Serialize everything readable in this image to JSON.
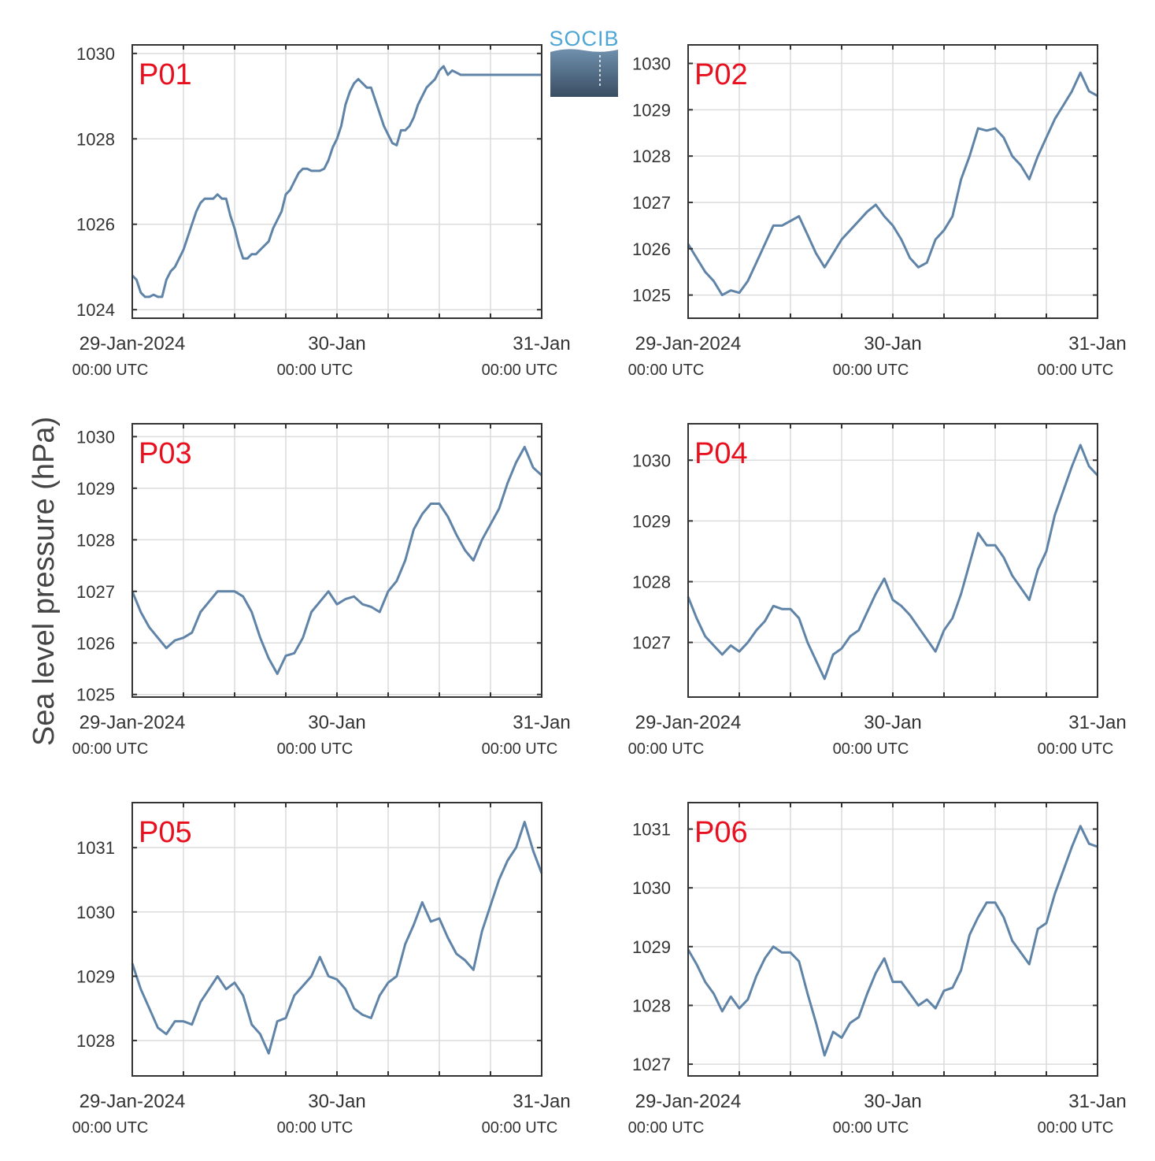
{
  "ylabel": "Sea level pressure (hPa)",
  "logo": {
    "text": "SOCIB"
  },
  "colors": {
    "line": "#5f84a8",
    "panel_label": "#e8101e",
    "grid": "#dcdcdc",
    "axes": "#333333"
  },
  "chart_data": [
    {
      "type": "line",
      "panel_label": "P01",
      "xlim": [
        0,
        48
      ],
      "ylim": [
        1023.8,
        1030.2
      ],
      "yticks": [
        1024,
        1026,
        1028,
        1030
      ],
      "ytick_labels": [
        "1024",
        "1026",
        "1028",
        "1030"
      ],
      "x_tick_labels": [
        {
          "date": "29-Jan-2024",
          "time": "00:00 UTC"
        },
        {
          "date": "30-Jan",
          "time": "00:00 UTC"
        },
        {
          "date": "31-Jan",
          "time": "00:00 UTC"
        }
      ],
      "grid": true,
      "x": [
        0,
        0.5,
        1,
        1.5,
        2,
        2.5,
        3,
        3.5,
        4,
        4.5,
        5,
        5.5,
        6,
        6.5,
        7,
        7.5,
        8,
        8.5,
        9,
        9.5,
        10,
        10.5,
        11,
        11.5,
        12,
        12.5,
        13,
        13.5,
        14,
        14.5,
        15,
        15.5,
        16,
        16.5,
        17,
        17.5,
        18,
        18.5,
        19,
        19.5,
        20,
        20.5,
        21,
        21.5,
        22,
        22.5,
        23,
        23.5,
        24,
        24.5,
        25,
        25.5,
        26,
        26.5,
        27,
        27.5,
        28,
        28.5,
        29,
        29.5,
        30,
        30.5,
        31,
        31.5,
        32,
        32.5,
        33,
        33.5,
        34,
        34.5,
        35,
        35.5,
        36,
        36.5,
        37,
        37.5,
        38,
        38.5,
        39,
        39.5,
        40,
        40.5,
        41,
        41.5,
        42,
        42.5,
        43,
        43.5,
        44,
        44.5,
        45,
        45.5,
        46,
        46.5,
        47,
        47.5,
        48
      ],
      "y": [
        1024.8,
        1024.7,
        1024.4,
        1024.3,
        1024.3,
        1024.35,
        1024.3,
        1024.3,
        1024.7,
        1024.9,
        1025.0,
        1025.2,
        1025.4,
        1025.7,
        1026.0,
        1026.3,
        1026.5,
        1026.6,
        1026.6,
        1026.6,
        1026.7,
        1026.6,
        1026.6,
        1026.2,
        1025.9,
        1025.5,
        1025.2,
        1025.2,
        1025.3,
        1025.3,
        1025.4,
        1025.5,
        1025.6,
        1025.9,
        1026.1,
        1026.3,
        1026.7,
        1026.8,
        1027.0,
        1027.2,
        1027.3,
        1027.3,
        1027.25,
        1027.25,
        1027.25,
        1027.3,
        1027.5,
        1027.8,
        1028.0,
        1028.3,
        1028.8,
        1029.1,
        1029.3,
        1029.4,
        1029.3,
        1029.2,
        1029.2,
        1028.9,
        1028.6,
        1028.3,
        1028.1,
        1027.9,
        1027.85,
        1028.2,
        1028.2,
        1028.3,
        1028.5,
        1028.8,
        1029.0,
        1029.2,
        1029.3,
        1029.4,
        1029.6,
        1029.7,
        1029.5,
        1029.6,
        1029.55,
        1029.5,
        1029.5,
        1029.5,
        1029.5,
        1029.5,
        1029.5,
        1029.5,
        1029.5,
        1029.5,
        1029.5,
        1029.5,
        1029.5,
        1029.5,
        1029.5,
        1029.5,
        1029.5,
        1029.5,
        1029.5,
        1029.5,
        1029.5
      ]
    },
    {
      "type": "line",
      "panel_label": "P02",
      "xlim": [
        0,
        48
      ],
      "ylim": [
        1024.5,
        1030.4
      ],
      "yticks": [
        1025,
        1026,
        1027,
        1028,
        1029,
        1030
      ],
      "ytick_labels": [
        "1025",
        "1026",
        "1027",
        "1028",
        "1029",
        "1030"
      ],
      "x_tick_labels": [
        {
          "date": "29-Jan-2024",
          "time": "00:00 UTC"
        },
        {
          "date": "30-Jan",
          "time": "00:00 UTC"
        },
        {
          "date": "31-Jan",
          "time": "00:00 UTC"
        }
      ],
      "grid": true,
      "x": [
        0,
        1,
        2,
        3,
        4,
        5,
        6,
        7,
        8,
        9,
        10,
        11,
        12,
        13,
        14,
        15,
        16,
        17,
        18,
        19,
        20,
        21,
        22,
        23,
        24,
        25,
        26,
        27,
        28,
        29,
        30,
        31,
        32,
        33,
        34,
        35,
        36,
        37,
        38,
        39,
        40,
        41,
        42,
        43,
        44,
        45,
        46,
        47,
        48
      ],
      "y": [
        1026.1,
        1025.8,
        1025.5,
        1025.3,
        1025.0,
        1025.1,
        1025.05,
        1025.3,
        1025.7,
        1026.1,
        1026.5,
        1026.5,
        1026.6,
        1026.7,
        1026.3,
        1025.9,
        1025.6,
        1025.9,
        1026.2,
        1026.4,
        1026.6,
        1026.8,
        1026.95,
        1026.7,
        1026.5,
        1026.2,
        1025.8,
        1025.6,
        1025.7,
        1026.2,
        1026.4,
        1026.7,
        1027.5,
        1028.0,
        1028.6,
        1028.55,
        1028.6,
        1028.4,
        1028.0,
        1027.8,
        1027.5,
        1028.0,
        1028.4,
        1028.8,
        1029.1,
        1029.4,
        1029.8,
        1029.4,
        1029.3
      ]
    },
    {
      "type": "line",
      "panel_label": "P03",
      "xlim": [
        0,
        48
      ],
      "ylim": [
        1024.95,
        1030.25
      ],
      "yticks": [
        1025,
        1026,
        1027,
        1028,
        1029,
        1030
      ],
      "ytick_labels": [
        "1025",
        "1026",
        "1027",
        "1028",
        "1029",
        "1030"
      ],
      "x_tick_labels": [
        {
          "date": "29-Jan-2024",
          "time": "00:00 UTC"
        },
        {
          "date": "30-Jan",
          "time": "00:00 UTC"
        },
        {
          "date": "31-Jan",
          "time": "00:00 UTC"
        }
      ],
      "grid": true,
      "x": [
        0,
        1,
        2,
        3,
        4,
        5,
        6,
        7,
        8,
        9,
        10,
        11,
        12,
        13,
        14,
        15,
        16,
        17,
        18,
        19,
        20,
        21,
        22,
        23,
        24,
        25,
        26,
        27,
        28,
        29,
        30,
        31,
        32,
        33,
        34,
        35,
        36,
        37,
        38,
        39,
        40,
        41,
        42,
        43,
        44,
        45,
        46,
        47,
        48
      ],
      "y": [
        1027.0,
        1026.6,
        1026.3,
        1026.1,
        1025.9,
        1026.05,
        1026.1,
        1026.2,
        1026.6,
        1026.8,
        1027.0,
        1027.0,
        1027.0,
        1026.9,
        1026.6,
        1026.1,
        1025.7,
        1025.4,
        1025.75,
        1025.8,
        1026.1,
        1026.6,
        1026.8,
        1027.0,
        1026.75,
        1026.85,
        1026.9,
        1026.75,
        1026.7,
        1026.6,
        1027.0,
        1027.2,
        1027.6,
        1028.2,
        1028.5,
        1028.7,
        1028.7,
        1028.45,
        1028.1,
        1027.8,
        1027.6,
        1028.0,
        1028.3,
        1028.6,
        1029.1,
        1029.5,
        1029.8,
        1029.4,
        1029.25
      ]
    },
    {
      "type": "line",
      "panel_label": "P04",
      "xlim": [
        0,
        48
      ],
      "ylim": [
        1026.1,
        1030.6
      ],
      "yticks": [
        1027,
        1028,
        1029,
        1030
      ],
      "ytick_labels": [
        "1027",
        "1028",
        "1029",
        "1030"
      ],
      "x_tick_labels": [
        {
          "date": "29-Jan-2024",
          "time": "00:00 UTC"
        },
        {
          "date": "30-Jan",
          "time": "00:00 UTC"
        },
        {
          "date": "31-Jan",
          "time": "00:00 UTC"
        }
      ],
      "grid": true,
      "x": [
        0,
        1,
        2,
        3,
        4,
        5,
        6,
        7,
        8,
        9,
        10,
        11,
        12,
        13,
        14,
        15,
        16,
        17,
        18,
        19,
        20,
        21,
        22,
        23,
        24,
        25,
        26,
        27,
        28,
        29,
        30,
        31,
        32,
        33,
        34,
        35,
        36,
        37,
        38,
        39,
        40,
        41,
        42,
        43,
        44,
        45,
        46,
        47,
        48
      ],
      "y": [
        1027.75,
        1027.4,
        1027.1,
        1026.95,
        1026.8,
        1026.95,
        1026.85,
        1027.0,
        1027.2,
        1027.35,
        1027.6,
        1027.55,
        1027.55,
        1027.4,
        1027.0,
        1026.7,
        1026.4,
        1026.8,
        1026.9,
        1027.1,
        1027.2,
        1027.5,
        1027.8,
        1028.05,
        1027.7,
        1027.6,
        1027.45,
        1027.25,
        1027.05,
        1026.85,
        1027.2,
        1027.4,
        1027.8,
        1028.3,
        1028.8,
        1028.6,
        1028.6,
        1028.4,
        1028.1,
        1027.9,
        1027.7,
        1028.2,
        1028.5,
        1029.1,
        1029.5,
        1029.9,
        1030.25,
        1029.9,
        1029.75
      ]
    },
    {
      "type": "line",
      "panel_label": "P05",
      "xlim": [
        0,
        48
      ],
      "ylim": [
        1027.45,
        1031.7
      ],
      "yticks": [
        1028,
        1029,
        1030,
        1031
      ],
      "ytick_labels": [
        "1028",
        "1029",
        "1030",
        "1031"
      ],
      "x_tick_labels": [
        {
          "date": "29-Jan-2024",
          "time": "00:00 UTC"
        },
        {
          "date": "30-Jan",
          "time": "00:00 UTC"
        },
        {
          "date": "31-Jan",
          "time": "00:00 UTC"
        }
      ],
      "grid": true,
      "x": [
        0,
        1,
        2,
        3,
        4,
        5,
        6,
        7,
        8,
        9,
        10,
        11,
        12,
        13,
        14,
        15,
        16,
        17,
        18,
        19,
        20,
        21,
        22,
        23,
        24,
        25,
        26,
        27,
        28,
        29,
        30,
        31,
        32,
        33,
        34,
        35,
        36,
        37,
        38,
        39,
        40,
        41,
        42,
        43,
        44,
        45,
        46,
        47,
        48
      ],
      "y": [
        1029.2,
        1028.8,
        1028.5,
        1028.2,
        1028.1,
        1028.3,
        1028.3,
        1028.25,
        1028.6,
        1028.8,
        1029.0,
        1028.8,
        1028.9,
        1028.7,
        1028.25,
        1028.1,
        1027.8,
        1028.3,
        1028.35,
        1028.7,
        1028.85,
        1029.0,
        1029.3,
        1029.0,
        1028.95,
        1028.8,
        1028.5,
        1028.4,
        1028.35,
        1028.7,
        1028.9,
        1029.0,
        1029.5,
        1029.8,
        1030.15,
        1029.85,
        1029.9,
        1029.6,
        1029.35,
        1029.25,
        1029.1,
        1029.7,
        1030.1,
        1030.5,
        1030.8,
        1031.0,
        1031.4,
        1030.95,
        1030.6
      ]
    },
    {
      "type": "line",
      "panel_label": "P06",
      "xlim": [
        0,
        48
      ],
      "ylim": [
        1026.8,
        1031.45
      ],
      "yticks": [
        1027,
        1028,
        1029,
        1030,
        1031
      ],
      "ytick_labels": [
        "1027",
        "1028",
        "1029",
        "1030",
        "1031"
      ],
      "x_tick_labels": [
        {
          "date": "29-Jan-2024",
          "time": "00:00 UTC"
        },
        {
          "date": "30-Jan",
          "time": "00:00 UTC"
        },
        {
          "date": "31-Jan",
          "time": "00:00 UTC"
        }
      ],
      "grid": true,
      "x": [
        0,
        1,
        2,
        3,
        4,
        5,
        6,
        7,
        8,
        9,
        10,
        11,
        12,
        13,
        14,
        15,
        16,
        17,
        18,
        19,
        20,
        21,
        22,
        23,
        24,
        25,
        26,
        27,
        28,
        29,
        30,
        31,
        32,
        33,
        34,
        35,
        36,
        37,
        38,
        39,
        40,
        41,
        42,
        43,
        44,
        45,
        46,
        47,
        48
      ],
      "y": [
        1028.95,
        1028.7,
        1028.4,
        1028.2,
        1027.9,
        1028.15,
        1027.95,
        1028.1,
        1028.5,
        1028.8,
        1029.0,
        1028.9,
        1028.9,
        1028.75,
        1028.2,
        1027.7,
        1027.15,
        1027.55,
        1027.45,
        1027.7,
        1027.8,
        1028.2,
        1028.55,
        1028.8,
        1028.4,
        1028.4,
        1028.2,
        1028.0,
        1028.1,
        1027.95,
        1028.25,
        1028.3,
        1028.6,
        1029.2,
        1029.5,
        1029.75,
        1029.75,
        1029.5,
        1029.1,
        1028.9,
        1028.7,
        1029.3,
        1029.4,
        1029.9,
        1030.3,
        1030.7,
        1031.05,
        1030.75,
        1030.7
      ]
    }
  ]
}
